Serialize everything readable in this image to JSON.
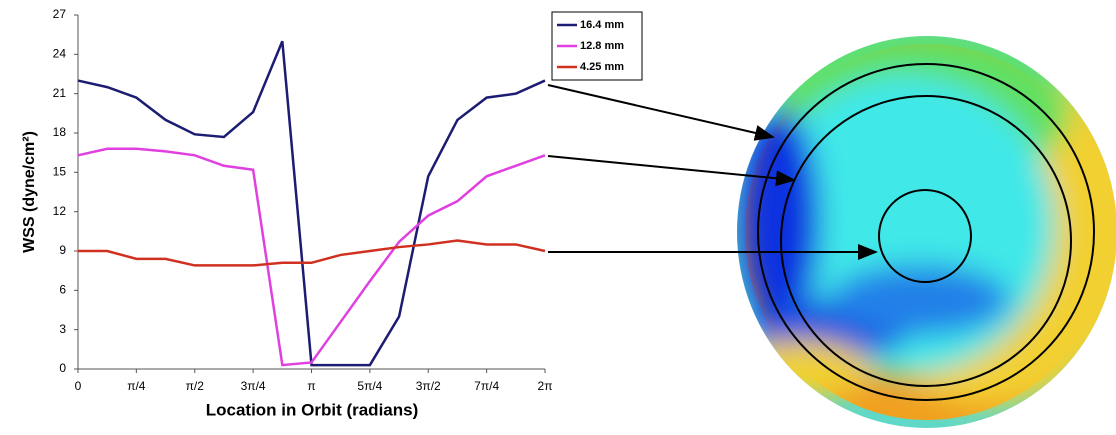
{
  "chart_data": {
    "type": "line",
    "xlabel": "Location in Orbit (radians)",
    "ylabel": "WSS (dyne/cm²)",
    "x": [
      0,
      0.393,
      0.785,
      1.178,
      1.571,
      1.963,
      2.356,
      2.749,
      3.142,
      3.534,
      3.927,
      4.32,
      4.712,
      5.105,
      5.498,
      5.89,
      6.283
    ],
    "series": [
      {
        "name": "16.4 mm",
        "color": "#1c1c72",
        "values": [
          22,
          21.5,
          20.7,
          19,
          17.9,
          17.7,
          19.6,
          25,
          0.3,
          0.3,
          0.3,
          4,
          14.7,
          19,
          20.7,
          21,
          22
        ]
      },
      {
        "name": "12.8 mm",
        "color": "#e040e0",
        "values": [
          16.3,
          16.8,
          16.8,
          16.6,
          16.3,
          15.5,
          15.2,
          0.3,
          0.5,
          3.6,
          6.7,
          9.7,
          11.7,
          12.8,
          14.7,
          15.5,
          16.3
        ]
      },
      {
        "name": "4.25 mm",
        "color": "#d03020",
        "values": [
          9,
          9,
          8.4,
          8.4,
          7.9,
          7.9,
          7.9,
          8.1,
          8.1,
          8.7,
          9.0,
          9.3,
          9.5,
          9.8,
          9.5,
          9.5,
          9.0
        ]
      }
    ],
    "xlim": [
      0,
      6.283
    ],
    "xticks": [
      0,
      {
        "value": 0.785,
        "label": "π/4"
      },
      {
        "value": 1.571,
        "label": "π/2"
      },
      {
        "value": 2.356,
        "label": "3π/4"
      },
      {
        "value": 3.142,
        "label": "π"
      },
      {
        "value": 3.927,
        "label": "5π/4"
      },
      {
        "value": 4.712,
        "label": "3π/2"
      },
      {
        "value": 5.498,
        "label": "7π/4"
      },
      {
        "value": 6.283,
        "label": "2π"
      }
    ],
    "ylim": [
      0,
      27
    ],
    "yticks": [
      0,
      3,
      6,
      9,
      12,
      15,
      18,
      21,
      24,
      27
    ],
    "grid": false,
    "legend": "top-right"
  }
}
